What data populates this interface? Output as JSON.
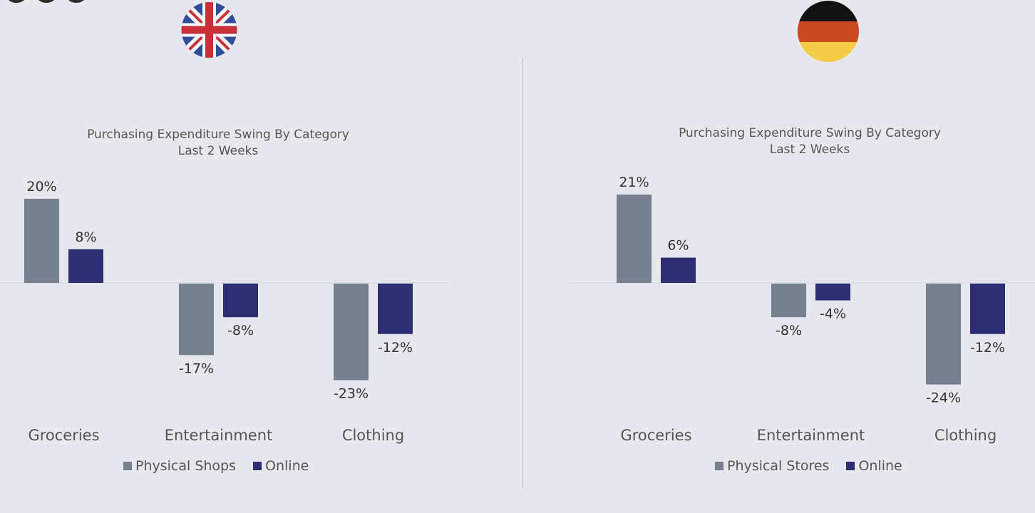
{
  "colors": {
    "physical": "#78808f",
    "online": "#2e2d72",
    "background": "#e7e8ee",
    "baseline": "#d4d6de"
  },
  "icons": [
    "uk-flag-icon",
    "germany-flag-icon"
  ],
  "chart_data": [
    {
      "type": "bar",
      "title": "Purchasing Expenditure Swing By Category",
      "subtitle": "Last 2 Weeks",
      "categories": [
        "Groceries",
        "Entertainment",
        "Clothing"
      ],
      "series": [
        {
          "name": "Physical Shops",
          "values": [
            20,
            -17,
            -23
          ],
          "labels": [
            "20%",
            "-17%",
            "-23%"
          ]
        },
        {
          "name": "Online",
          "values": [
            8,
            -8,
            -12
          ],
          "labels": [
            "8%",
            "-8%",
            "-12%"
          ]
        }
      ],
      "ylim": [
        -25,
        22
      ],
      "grid": false,
      "legend": "bottom"
    },
    {
      "type": "bar",
      "title": "Purchasing Expenditure Swing By Category",
      "subtitle": "Last 2 Weeks",
      "categories": [
        "Groceries",
        "Entertainment",
        "Clothing"
      ],
      "series": [
        {
          "name": "Physical Stores",
          "values": [
            21,
            -8,
            -24
          ],
          "labels": [
            "21%",
            "-8%",
            "-24%"
          ]
        },
        {
          "name": "Online",
          "values": [
            6,
            -4,
            -12
          ],
          "labels": [
            "6%",
            "-4%",
            "-12%"
          ]
        }
      ],
      "ylim": [
        -25,
        22
      ],
      "grid": false,
      "legend": "bottom"
    }
  ]
}
